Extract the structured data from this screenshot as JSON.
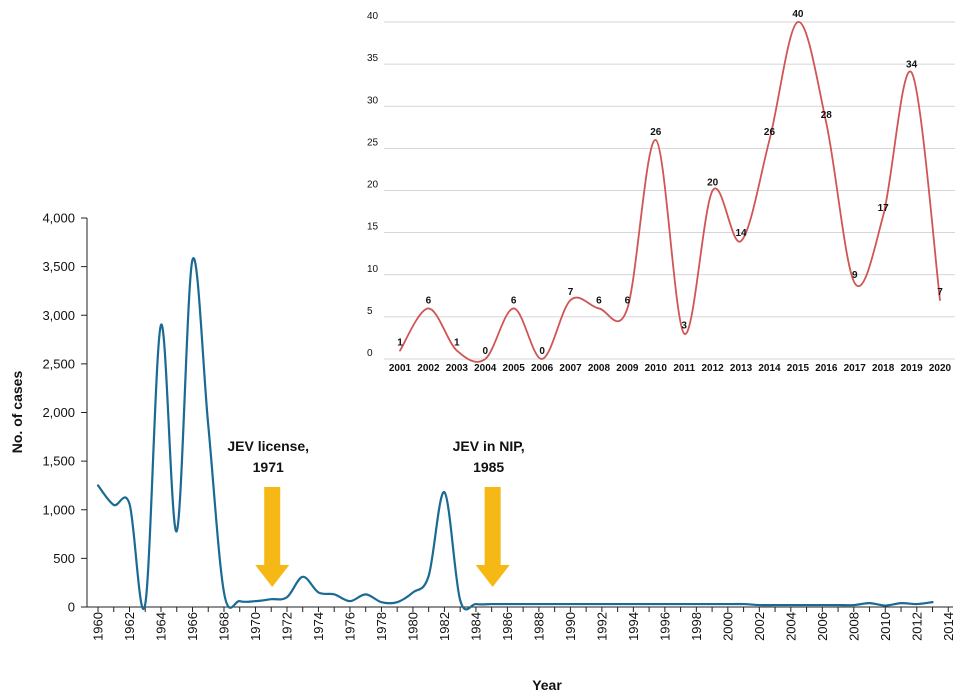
{
  "chart_data": [
    {
      "type": "line",
      "xlabel": "Year",
      "ylabel": "No. of cases",
      "ylim": [
        0,
        4000
      ],
      "xlim": [
        1960,
        2014
      ],
      "yticks": [
        "0",
        "500",
        "1,000",
        "1,500",
        "2,000",
        "2,500",
        "3,000",
        "3,500",
        "4,000"
      ],
      "ytick_values": [
        0,
        500,
        1000,
        1500,
        2000,
        2500,
        3000,
        3500,
        4000
      ],
      "xticks": [
        "1960",
        "1962",
        "1964",
        "1966",
        "1968",
        "1970",
        "1972",
        "1974",
        "1976",
        "1978",
        "1980",
        "1982",
        "1984",
        "1986",
        "1988",
        "1990",
        "1992",
        "1994",
        "1996",
        "1998",
        "2000",
        "2002",
        "2004",
        "2006",
        "2008",
        "2010",
        "2012",
        "2014"
      ],
      "color": "#1b6a93",
      "series": [
        {
          "x": [
            1960,
            1961,
            1962,
            1963,
            1964,
            1965,
            1966,
            1967,
            1968,
            1969,
            1970,
            1971,
            1972,
            1973,
            1974,
            1975,
            1976,
            1977,
            1978,
            1979,
            1980,
            1981,
            1982,
            1983,
            1984,
            1985,
            1986,
            1987,
            1988,
            1989,
            1990,
            1991,
            1992,
            1993,
            1994,
            1995,
            1996,
            1997,
            1998,
            1999,
            2000,
            2001,
            2002,
            2003,
            2004,
            2005,
            2006,
            2007,
            2008,
            2009,
            2010,
            2011,
            2012,
            2013
          ],
          "y": [
            1250,
            1050,
            1060,
            30,
            2900,
            780,
            3570,
            1870,
            150,
            60,
            60,
            80,
            100,
            310,
            150,
            130,
            60,
            130,
            50,
            50,
            150,
            320,
            1180,
            70,
            30,
            30,
            30,
            30,
            30,
            30,
            30,
            30,
            30,
            30,
            30,
            30,
            30,
            30,
            30,
            30,
            30,
            30,
            20,
            20,
            20,
            20,
            20,
            20,
            20,
            40,
            15,
            40,
            30,
            50
          ]
        }
      ],
      "annotations": [
        {
          "text_line1": "JEV license,",
          "text_line2": "1971",
          "x": 1971,
          "arrow_color": "#f5b815"
        },
        {
          "text_line1": "JEV in NIP,",
          "text_line2": "1985",
          "x": 1985,
          "arrow_color": "#f5b815"
        }
      ]
    },
    {
      "type": "line",
      "xlabel": "",
      "ylabel": "",
      "ylim": [
        0,
        40
      ],
      "yticks": [
        "0",
        "5",
        "10",
        "15",
        "20",
        "25",
        "30",
        "35",
        "40"
      ],
      "ytick_values": [
        0,
        5,
        10,
        15,
        20,
        25,
        30,
        35,
        40
      ],
      "categories": [
        "2001",
        "2002",
        "2003",
        "2004",
        "2005",
        "2006",
        "2007",
        "2008",
        "2009",
        "2010",
        "2011",
        "2012",
        "2013",
        "2014",
        "2015",
        "2016",
        "2017",
        "2018",
        "2019",
        "2020"
      ],
      "grid": true,
      "color": "#d05555",
      "series": [
        {
          "values": [
            1,
            6,
            1,
            0,
            6,
            0,
            7,
            6,
            6,
            26,
            3,
            20,
            14,
            26,
            40,
            28,
            9,
            17,
            34,
            7
          ],
          "labels": [
            "1",
            "6",
            "1",
            "0",
            "6",
            "0",
            "7",
            "6",
            "6",
            "26",
            "3",
            "20",
            "14",
            "26",
            "40",
            "28",
            "9",
            "17",
            "34",
            "7"
          ]
        }
      ]
    }
  ]
}
